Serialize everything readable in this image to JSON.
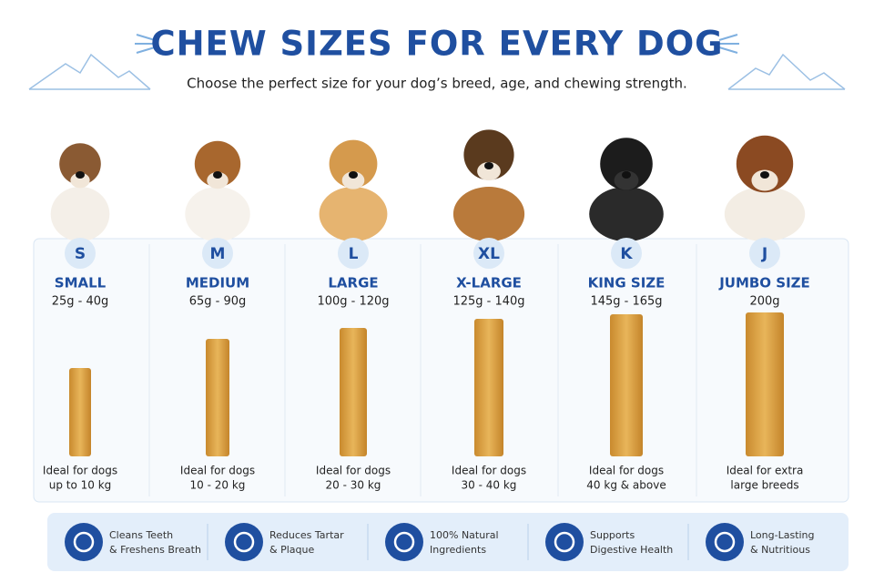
{
  "header": {
    "title": "CHEW SIZES FOR EVERY DOG",
    "subtitle": "Choose the perfect size for your dog’s breed, age, and chewing strength."
  },
  "sizes": [
    {
      "badge": "S",
      "name": "SMALL",
      "weight": "25g - 40g",
      "description": [
        "Ideal for dogs",
        "up to 10 kg"
      ]
    },
    {
      "badge": "M",
      "name": "MEDIUM",
      "weight": "65g - 90g",
      "description": [
        "Ideal for dogs",
        "10 - 20 kg"
      ]
    },
    {
      "badge": "L",
      "name": "LARGE",
      "weight": "100g - 120g",
      "description": [
        "Ideal for dogs",
        "20 - 30 kg"
      ]
    },
    {
      "badge": "XL",
      "name": "X-LARGE",
      "weight": "125g - 140g",
      "description": [
        "Ideal for dogs",
        "30 - 40 kg"
      ]
    },
    {
      "badge": "K",
      "name": "KING SIZE",
      "weight": "145g - 165g",
      "description": [
        "Ideal for dogs",
        "40 kg & above"
      ]
    },
    {
      "badge": "J",
      "name": "JUMBO SIZE",
      "weight": "200g",
      "description": [
        "Ideal for extra",
        "large breeds"
      ]
    }
  ],
  "features": [
    {
      "lines": [
        "Cleans Teeth",
        "& Freshens Breath"
      ]
    },
    {
      "lines": [
        "Reduces Tartar",
        "& Plaque"
      ]
    },
    {
      "lines": [
        "100% Natural",
        "Ingredients"
      ]
    },
    {
      "lines": [
        "Supports",
        "Digestive Health"
      ]
    },
    {
      "lines": [
        "Long-Lasting",
        "& Nutritious"
      ]
    }
  ]
}
